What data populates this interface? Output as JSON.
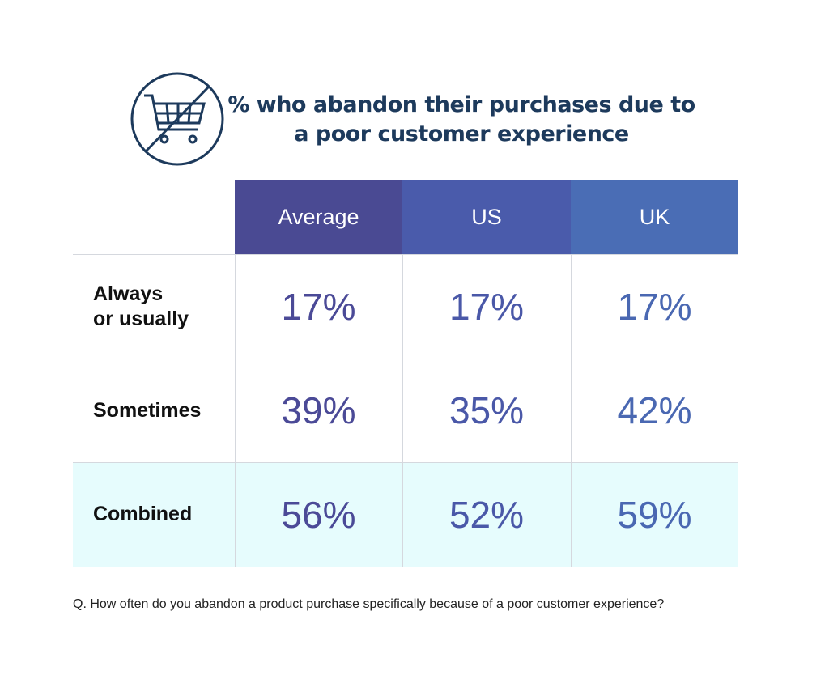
{
  "title": "% who abandon their purchases due to a poor customer experience",
  "icon": "no-shopping-cart-icon",
  "colors": {
    "header_average": "#4a4a93",
    "header_us": "#4a5bab",
    "header_uk": "#4a6db5",
    "value_average": "#4b4a97",
    "value_us": "#4a58a8",
    "value_uk": "#4a68b2",
    "combined_row_bg": "#e6fcfd",
    "title": "#1d3a5c"
  },
  "chart_data": {
    "type": "table",
    "title": "% who abandon their purchases due to a poor customer experience",
    "columns": [
      "Average",
      "US",
      "UK"
    ],
    "rows": [
      {
        "label": "Always or usually",
        "label_lines": [
          "Always",
          "or usually"
        ],
        "values": [
          "17%",
          "17%",
          "17%"
        ]
      },
      {
        "label": "Sometimes",
        "values": [
          "39%",
          "35%",
          "42%"
        ]
      },
      {
        "label": "Combined",
        "values": [
          "56%",
          "52%",
          "59%"
        ]
      }
    ]
  },
  "question": "Q. How often do you abandon a product purchase specifically because of a poor customer experience?"
}
